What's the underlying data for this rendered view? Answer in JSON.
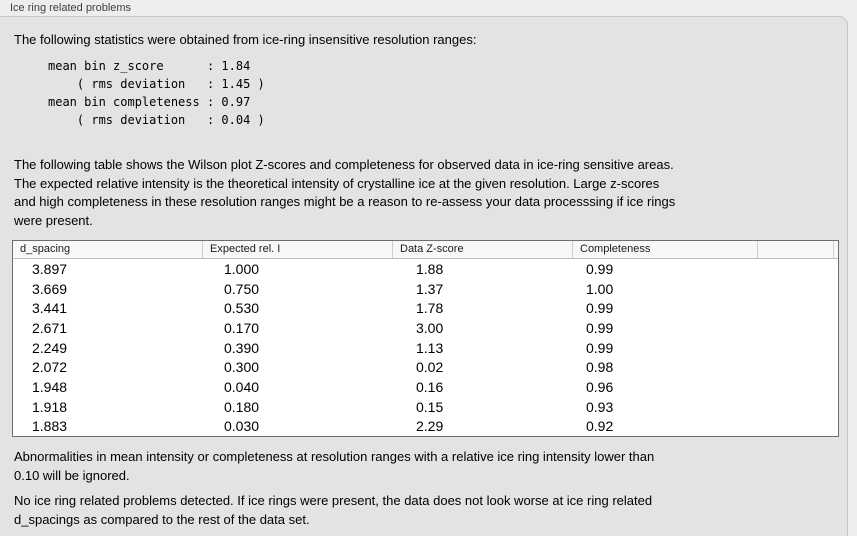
{
  "panel": {
    "title": "Ice ring related problems"
  },
  "intro": {
    "text": "The following statistics were obtained from ice-ring insensitive resolution ranges:"
  },
  "stats_block": {
    "text": "mean bin z_score      : 1.84\n    ( rms deviation   : 1.45 )\nmean bin completeness : 0.97\n    ( rms deviation   : 0.04 )",
    "mean_bin_z_score": "1.84",
    "z_score_rms_deviation": "1.45",
    "mean_bin_completeness": "0.97",
    "completeness_rms_deviation": "0.04"
  },
  "description": {
    "text": "The following table shows the Wilson plot Z-scores and completeness for observed data in ice-ring sensitive areas.\nThe expected relative intensity is the theoretical intensity of crystalline ice at the given resolution. Large z-scores\nand high completeness in these resolution ranges might be a reason to re-assess your data processsing if ice rings\nwere present."
  },
  "table": {
    "columns": [
      "d_spacing",
      "Expected rel. I",
      "Data Z-score",
      "Completeness"
    ],
    "rows": [
      [
        "3.897",
        "1.000",
        "1.88",
        "0.99"
      ],
      [
        "3.669",
        "0.750",
        "1.37",
        "1.00"
      ],
      [
        "3.441",
        "0.530",
        "1.78",
        "0.99"
      ],
      [
        "2.671",
        "0.170",
        "3.00",
        "0.99"
      ],
      [
        "2.249",
        "0.390",
        "1.13",
        "0.99"
      ],
      [
        "2.072",
        "0.300",
        "0.02",
        "0.98"
      ],
      [
        "1.948",
        "0.040",
        "0.16",
        "0.96"
      ],
      [
        "1.918",
        "0.180",
        "0.15",
        "0.93"
      ],
      [
        "1.883",
        "0.030",
        "2.29",
        "0.92"
      ]
    ]
  },
  "notes": {
    "ignore_note": "Abnormalities in mean intensity or completeness at resolution ranges with a relative ice ring intensity lower than\n0.10 will be ignored.",
    "conclusion": "No ice ring related problems detected. If ice rings were present, the data does not look worse at ice ring related\nd_spacings as compared to the rest of the data set."
  },
  "colors": {
    "panel_background": "#ededed",
    "groupbox_background": "#e3e3e3",
    "table_border": "#6e6e6e",
    "table_header_background": "#f8f8f8"
  }
}
